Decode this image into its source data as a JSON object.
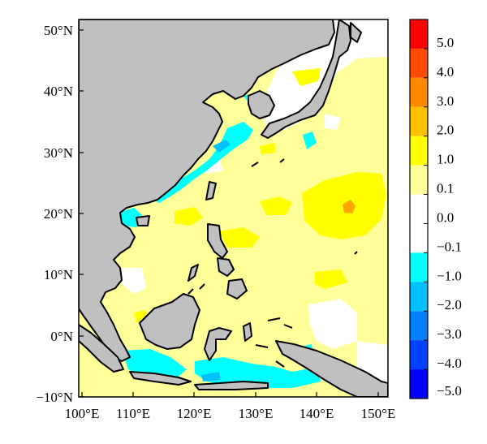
{
  "map": {
    "lat_labels": [
      "50°N",
      "40°N",
      "30°N",
      "20°N",
      "10°N",
      "0°N",
      "−10°N"
    ],
    "lon_labels": [
      "100°E",
      "110°E",
      "120°E",
      "130°E",
      "140°E",
      "150°E"
    ],
    "extent": {
      "lon": [
        99,
        150
      ],
      "lat": [
        -11,
        52
      ]
    }
  },
  "colorbar": {
    "labels": [
      "5.0",
      "4.0",
      "3.0",
      "2.0",
      "1.0",
      "0.1",
      "0.0",
      "−0.1",
      "−1.0",
      "−2.0",
      "−3.0",
      "−4.0",
      "−5.0"
    ],
    "colors": [
      "#ff0000",
      "#ff4a00",
      "#ff8a00",
      "#ffc000",
      "#ffff00",
      "#ffff99",
      "#ffffff",
      "#ffffff",
      "#00ffff",
      "#00c0ff",
      "#0080ff",
      "#0040ff",
      "#0000ff"
    ]
  },
  "colors": {
    "land": "#c0c0c0",
    "positive_weak": "#ffff99",
    "positive": "#ffff00",
    "positive_strong": "#ff9900",
    "negative_weak": "#00ffff",
    "negative": "#00c0ff"
  }
}
